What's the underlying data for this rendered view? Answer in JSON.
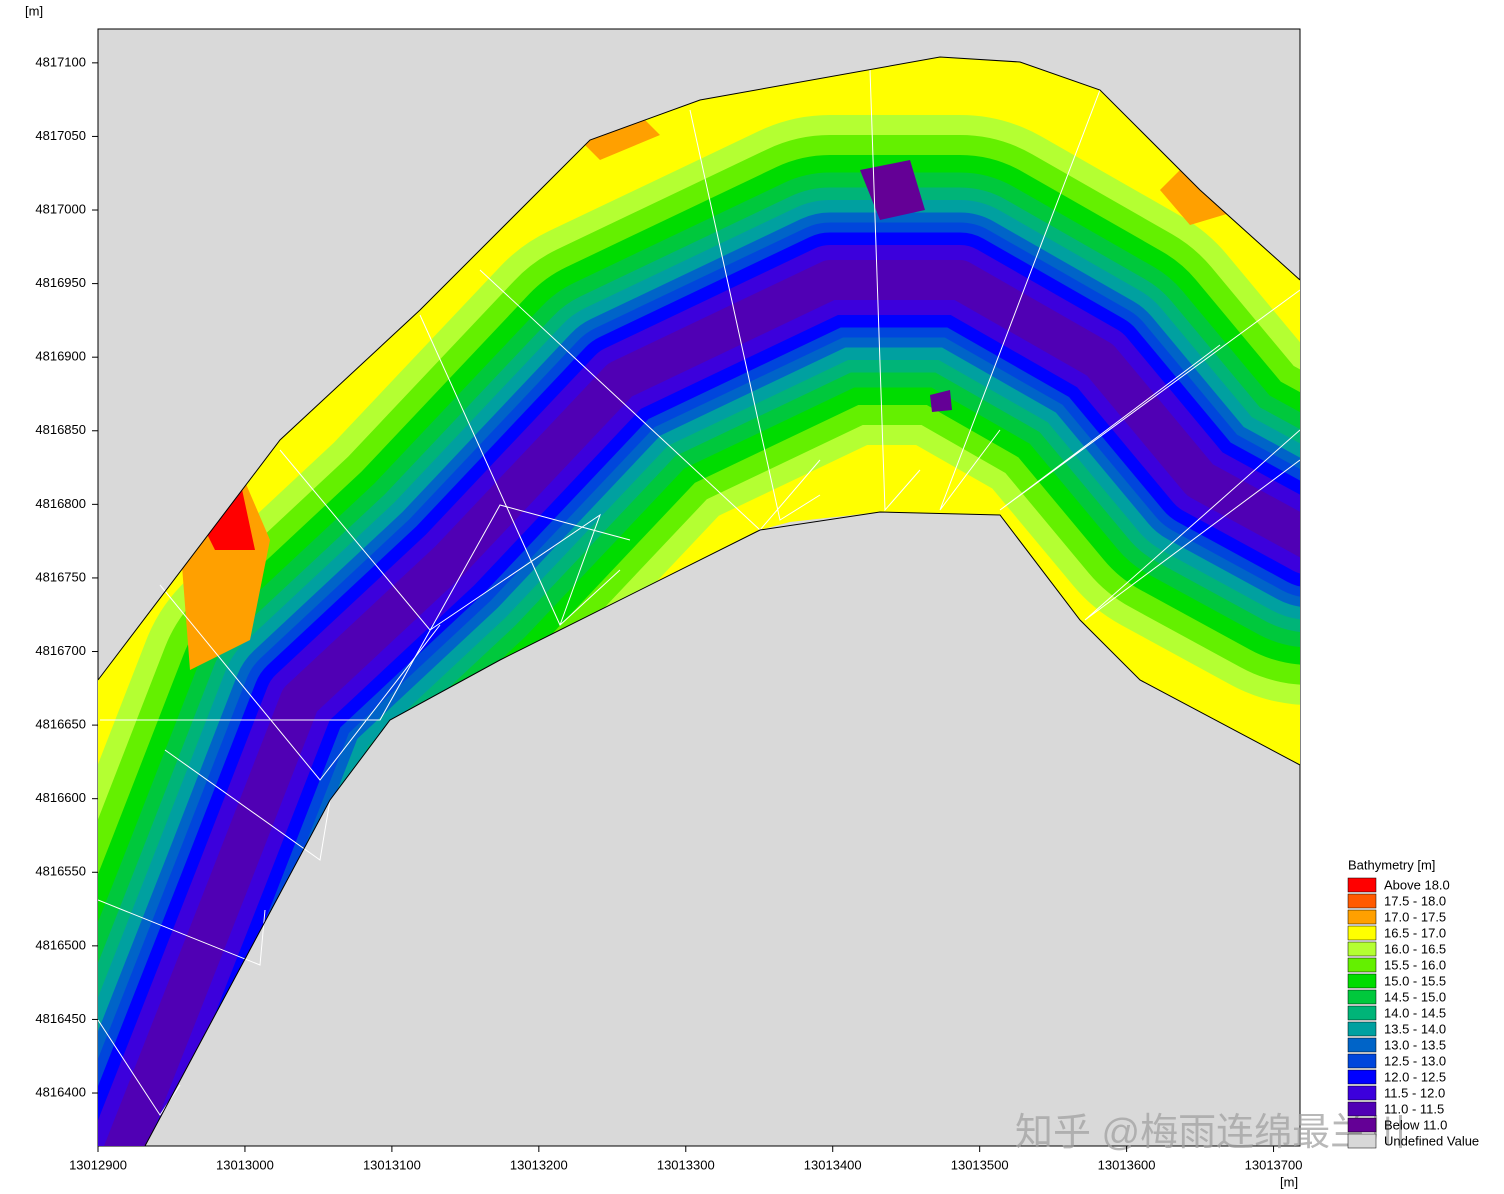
{
  "chart_data": {
    "type": "map",
    "x_unit": "[m]",
    "y_unit": "[m]",
    "xlim": [
      13012900,
      13013718
    ],
    "ylim": [
      4816364,
      4817123
    ],
    "xticks": [
      13012900,
      13013000,
      13013100,
      13013200,
      13013300,
      13013400,
      13013500,
      13013600,
      13013700
    ],
    "yticks": [
      4816400,
      4816450,
      4816500,
      4816550,
      4816600,
      4816650,
      4816700,
      4816750,
      4816800,
      4816850,
      4816900,
      4816950,
      4817000,
      4817050,
      4817100
    ],
    "legend": {
      "title": "Bathymetry [m]",
      "items": [
        {
          "label": "Above 18.0",
          "color": "#ff0000"
        },
        {
          "label": "17.5 - 18.0",
          "color": "#ff5a00"
        },
        {
          "label": "17.0 - 17.5",
          "color": "#ffa000"
        },
        {
          "label": "16.5 - 17.0",
          "color": "#ffff00"
        },
        {
          "label": "16.0 - 16.5",
          "color": "#b4ff32"
        },
        {
          "label": "15.5 - 16.0",
          "color": "#64f000"
        },
        {
          "label": "15.0 - 15.5",
          "color": "#00dc00"
        },
        {
          "label": "14.5 - 15.0",
          "color": "#00c83c"
        },
        {
          "label": "14.0 - 14.5",
          "color": "#00b478"
        },
        {
          "label": "13.5 - 14.0",
          "color": "#00a0a0"
        },
        {
          "label": "13.0 - 13.5",
          "color": "#0064c8"
        },
        {
          "label": "12.5 - 13.0",
          "color": "#0046dc"
        },
        {
          "label": "12.0 - 12.5",
          "color": "#0000ff"
        },
        {
          "label": "11.5 - 12.0",
          "color": "#3c00dc"
        },
        {
          "label": "11.0 - 11.5",
          "color": "#5000b4"
        },
        {
          "label": "Below 11.0",
          "color": "#640096"
        },
        {
          "label": "Undefined Value",
          "color": "#d8d8d8"
        }
      ]
    },
    "watermark": "知乎 @梅雨连绵最兰川"
  }
}
